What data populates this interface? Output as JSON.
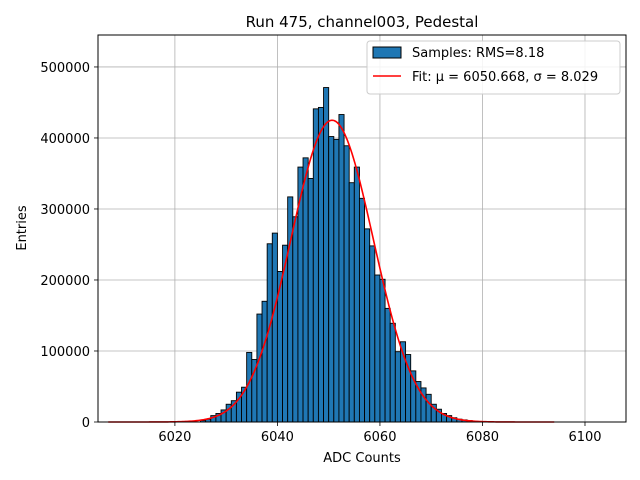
{
  "chart_data": {
    "type": "bar",
    "title": "Run 475, channel003, Pedestal",
    "xlabel": "ADC Counts",
    "ylabel": "Entries",
    "xlim": [
      6005,
      6108
    ],
    "ylim": [
      0,
      545000
    ],
    "xticks": [
      6020,
      6040,
      6060,
      6080,
      6100
    ],
    "yticks": [
      0,
      100000,
      200000,
      300000,
      400000,
      500000
    ],
    "grid": true,
    "legend_position": "top-right",
    "colors": {
      "bar_fill": "#1f77b4",
      "bar_edge": "#000000",
      "fit_line": "#ff0000"
    },
    "histogram": {
      "name": "Samples: RMS=8.18",
      "bin_width": 1,
      "bins": [
        6025,
        6026,
        6027,
        6028,
        6029,
        6030,
        6031,
        6032,
        6033,
        6034,
        6035,
        6036,
        6037,
        6038,
        6039,
        6040,
        6041,
        6042,
        6043,
        6044,
        6045,
        6046,
        6047,
        6048,
        6049,
        6050,
        6051,
        6052,
        6053,
        6054,
        6055,
        6056,
        6057,
        6058,
        6059,
        6060,
        6061,
        6062,
        6063,
        6064,
        6065,
        6066,
        6067,
        6068,
        6069,
        6070,
        6071,
        6072,
        6073,
        6074,
        6075,
        6076,
        6077,
        6078
      ],
      "values": [
        2000,
        4000,
        9000,
        12000,
        17000,
        25000,
        30000,
        42000,
        49000,
        98000,
        88000,
        152000,
        170000,
        251000,
        266000,
        212000,
        249000,
        317000,
        289000,
        359000,
        372000,
        343000,
        441000,
        443000,
        471000,
        402000,
        398000,
        433000,
        389000,
        337000,
        359000,
        315000,
        272000,
        248000,
        207000,
        201000,
        160000,
        139000,
        99000,
        113000,
        95000,
        72000,
        57000,
        48000,
        39000,
        25000,
        18000,
        12000,
        9000,
        6000,
        4000,
        3000,
        2000,
        1000
      ]
    },
    "fit": {
      "name": "Fit: μ = 6050.668, σ = 8.029",
      "mu": 6050.668,
      "sigma": 8.029,
      "amplitude": 425000,
      "x_range": [
        6007,
        6094
      ]
    }
  }
}
